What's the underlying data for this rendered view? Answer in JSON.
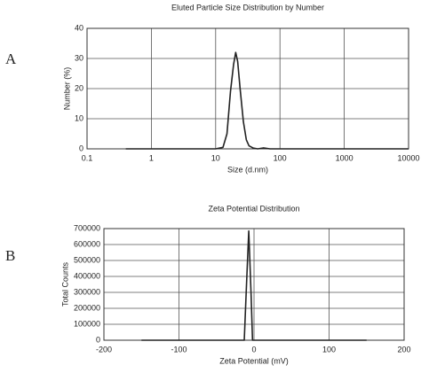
{
  "chart_data": [
    {
      "type": "line",
      "panel_label": "A",
      "title": "Eluted Particle Size Distribution by Number",
      "x_label": "Size (d.nm)",
      "y_label": "Number (%)",
      "xscale": "log",
      "xlim": [
        0.1,
        10000
      ],
      "xticks": [
        0.1,
        1,
        10,
        100,
        1000,
        10000
      ],
      "ylim": [
        0,
        40
      ],
      "yticks": [
        0,
        10,
        20,
        30,
        40
      ],
      "grid": true,
      "color": "#222222",
      "x": [
        0.4,
        10,
        13,
        15,
        17,
        19,
        20.5,
        22,
        24,
        27,
        30,
        33,
        38,
        45,
        55,
        70,
        100,
        1000,
        10000
      ],
      "values": [
        0,
        0,
        0.5,
        5,
        19,
        28,
        32,
        29,
        20,
        9,
        3,
        1,
        0.3,
        0,
        0.3,
        0,
        0,
        0,
        0
      ]
    },
    {
      "type": "line",
      "panel_label": "B",
      "title": "Zeta Potential Distribution",
      "x_label": "Zeta Potential (mV)",
      "y_label": "Total Counts",
      "xscale": "linear",
      "xlim": [
        -200,
        200
      ],
      "xticks": [
        -200,
        -100,
        0,
        100,
        200
      ],
      "ylim": [
        0,
        700000
      ],
      "yticks": [
        0,
        100000,
        200000,
        300000,
        400000,
        500000,
        600000,
        700000
      ],
      "grid": true,
      "color": "#222222",
      "x": [
        -150,
        -13,
        -10,
        -7,
        -4,
        -2,
        150
      ],
      "values": [
        0,
        0,
        350000,
        685000,
        300000,
        0,
        0
      ]
    }
  ]
}
